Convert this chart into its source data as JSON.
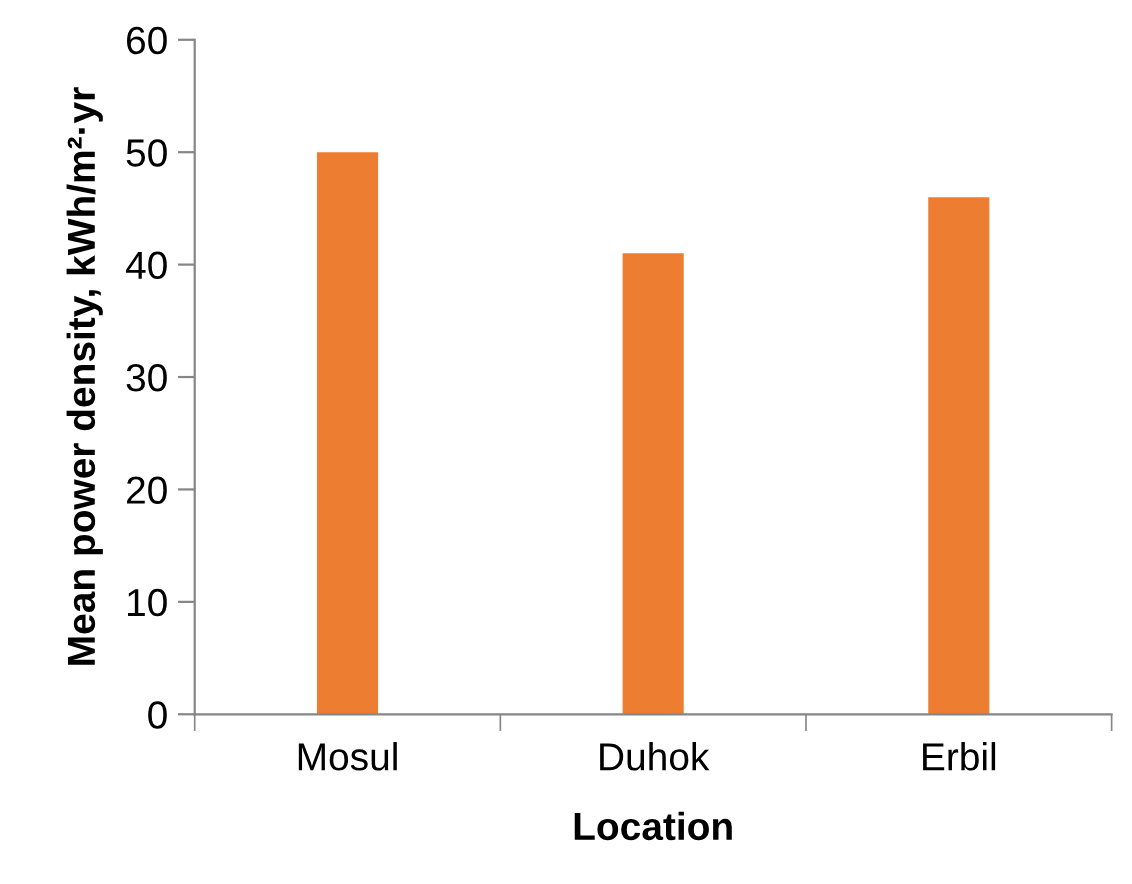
{
  "chart_data": {
    "type": "bar",
    "xlabel": "Location",
    "ylabel": "Mean power density, kWh/m²·yr",
    "categories": [
      "Mosul",
      "Duhok",
      "Erbil"
    ],
    "values": [
      50,
      41,
      46
    ],
    "color": "#ed7d31",
    "ylim": [
      0,
      60
    ],
    "yticks": [
      0,
      10,
      20,
      30,
      40,
      50,
      60
    ],
    "grid": false
  }
}
